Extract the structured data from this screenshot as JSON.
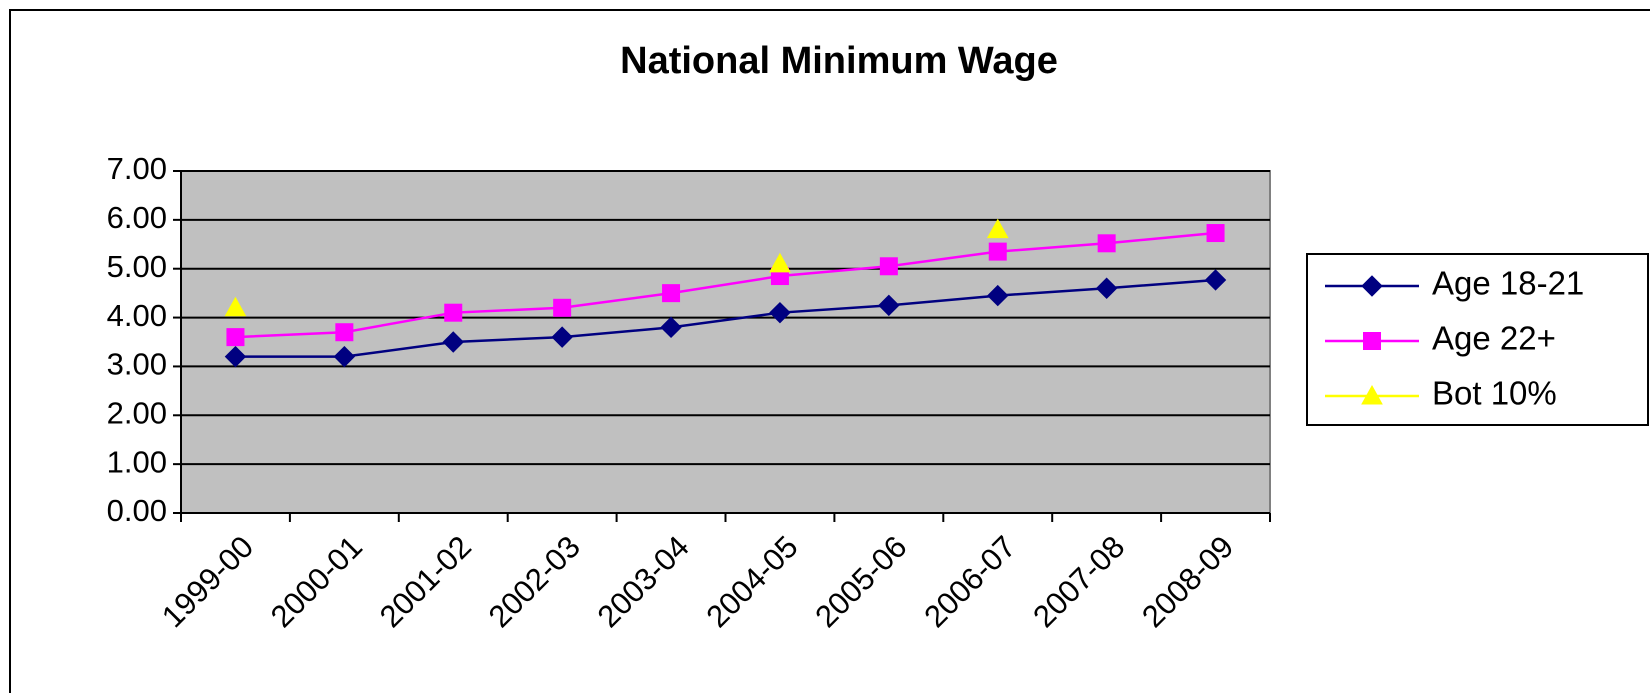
{
  "chart_data": {
    "type": "line",
    "title": "National Minimum Wage",
    "categories": [
      "1999-00",
      "2000-01",
      "2001-02",
      "2002-03",
      "2003-04",
      "2004-05",
      "2005-06",
      "2006-07",
      "2007-08",
      "2008-09"
    ],
    "series": [
      {
        "name": "Age 18-21",
        "color": "#000080",
        "marker": "diamond",
        "values": [
          3.2,
          3.2,
          3.5,
          3.6,
          3.8,
          4.1,
          4.25,
          4.45,
          4.6,
          4.77
        ]
      },
      {
        "name": "Age 22+",
        "color": "#ff00ff",
        "marker": "square",
        "values": [
          3.6,
          3.7,
          4.1,
          4.2,
          4.5,
          4.85,
          5.05,
          5.35,
          5.52,
          5.73
        ]
      },
      {
        "name": "Bot 10%",
        "color": "#ffff00",
        "marker": "triangle",
        "values": [
          4.2,
          null,
          null,
          null,
          null,
          5.1,
          null,
          5.8,
          null,
          null
        ]
      }
    ],
    "ylim": [
      0,
      7
    ],
    "yticks": [
      {
        "value": 0,
        "label": "0.00"
      },
      {
        "value": 1,
        "label": "1.00"
      },
      {
        "value": 2,
        "label": "2.00"
      },
      {
        "value": 3,
        "label": "3.00"
      },
      {
        "value": 4,
        "label": "4.00"
      },
      {
        "value": 5,
        "label": "5.00"
      },
      {
        "value": 6,
        "label": "6.00"
      },
      {
        "value": 7,
        "label": "7.00"
      }
    ],
    "grid": true,
    "legend": "right"
  }
}
